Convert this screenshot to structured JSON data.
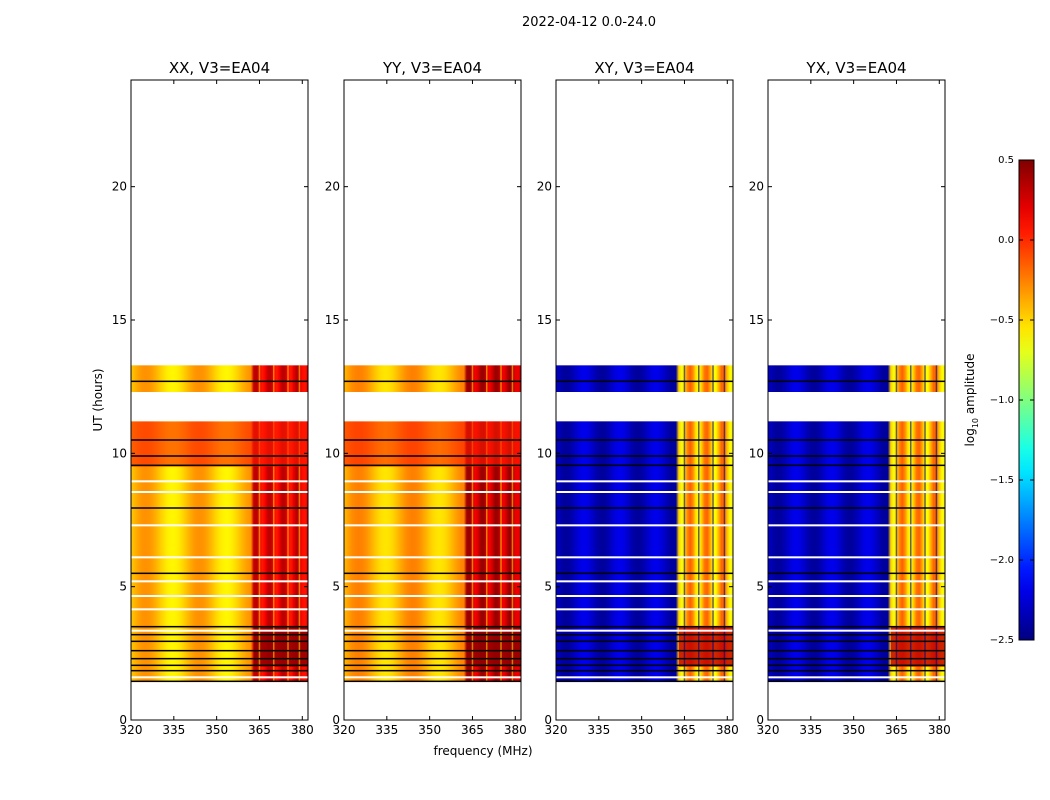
{
  "chart_data": {
    "type": "heatmap",
    "suptitle": "2022-04-12 0.0-24.0",
    "xlabel": "frequency (MHz)",
    "ylabel": "UT (hours)",
    "xlim": [
      320,
      382
    ],
    "ylim": [
      0,
      24
    ],
    "xticks": [
      320,
      335,
      350,
      365,
      380
    ],
    "yticks": [
      0,
      5,
      10,
      15,
      20
    ],
    "colormap": "jet",
    "colorbar": {
      "label_main": "log",
      "label_sub": "10",
      "label_rest": " amplitude",
      "range": [
        -2.5,
        0.5
      ],
      "ticks": [
        "0.5",
        "0.0",
        "−0.5",
        "−1.0",
        "−1.5",
        "−2.0",
        "−2.5"
      ]
    },
    "data_time_ranges_hours": [
      [
        1.45,
        12.1
      ],
      [
        12.3,
        13.3
      ]
    ],
    "gap_hours": [
      [
        11.2,
        12.3
      ]
    ],
    "flagged_lines_hours": [
      1.45,
      1.85,
      2.05,
      2.3,
      2.6,
      2.95,
      3.2,
      3.5,
      5.5,
      7.95,
      9.55,
      9.9,
      10.5,
      12.7
    ],
    "white_lines_hours": [
      1.6,
      3.35,
      4.15,
      4.65,
      5.2,
      6.1,
      7.3,
      8.55,
      8.95
    ],
    "high_band_MHz": [
      363,
      381
    ],
    "panels": [
      {
        "title": "XX, V3=EA04",
        "polarization": "XX",
        "kind": "parallel",
        "level_low": 0.1,
        "level_mid": -0.45,
        "level_band": 0.2
      },
      {
        "title": "YY, V3=EA04",
        "polarization": "YY",
        "kind": "parallel",
        "level_low": 0.15,
        "level_mid": -0.4,
        "level_band": 0.3
      },
      {
        "title": "XY, V3=EA04",
        "polarization": "XY",
        "kind": "cross",
        "level_low": -2.1,
        "level_mid": -2.3,
        "level_band": -0.4
      },
      {
        "title": "YX, V3=EA04",
        "polarization": "YX",
        "kind": "cross",
        "level_low": -2.1,
        "level_mid": -2.3,
        "level_band": -0.4
      }
    ]
  }
}
